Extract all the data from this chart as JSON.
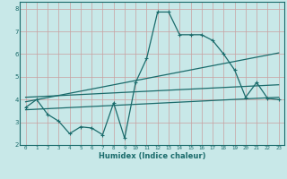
{
  "bg_color": "#c8e8e8",
  "grid_color": "#aed4d4",
  "line_color": "#1a6b6b",
  "xlabel": "Humidex (Indice chaleur)",
  "xlim": [
    -0.5,
    23.5
  ],
  "ylim": [
    2,
    8.3
  ],
  "xticks": [
    0,
    1,
    2,
    3,
    4,
    5,
    6,
    7,
    8,
    9,
    10,
    11,
    12,
    13,
    14,
    15,
    16,
    17,
    18,
    19,
    20,
    21,
    22,
    23
  ],
  "yticks": [
    2,
    3,
    4,
    5,
    6,
    7,
    8
  ],
  "line1_x": [
    0,
    1,
    2,
    3,
    4,
    5,
    6,
    7,
    8,
    9,
    10,
    11,
    12,
    13,
    14,
    15,
    16,
    17,
    18,
    19,
    20,
    21,
    22,
    23
  ],
  "line1_y": [
    3.65,
    4.0,
    3.35,
    3.05,
    2.5,
    2.8,
    2.75,
    2.45,
    3.85,
    2.3,
    4.75,
    5.8,
    7.85,
    7.85,
    6.85,
    6.85,
    6.85,
    6.6,
    6.0,
    5.3,
    4.1,
    4.75,
    4.05,
    4.0
  ],
  "line2_x": [
    0,
    23
  ],
  "line2_y": [
    3.9,
    6.05
  ],
  "line3_x": [
    0,
    23
  ],
  "line3_y": [
    3.55,
    4.1
  ],
  "line4_x": [
    0,
    23
  ],
  "line4_y": [
    4.1,
    4.65
  ]
}
